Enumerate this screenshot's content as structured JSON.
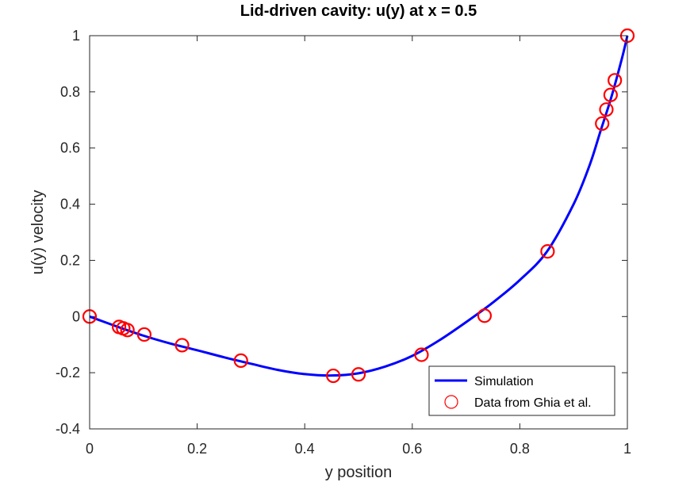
{
  "chart_data": {
    "type": "line",
    "title": "Lid-driven cavity: u(y) at x = 0.5",
    "xlabel": "y position",
    "ylabel": "u(y) velocity",
    "xlim": [
      0,
      1
    ],
    "ylim": [
      -0.4,
      1
    ],
    "x_ticks": [
      "0",
      "0.2",
      "0.4",
      "0.6",
      "0.8",
      "1"
    ],
    "y_ticks": [
      "-0.4",
      "-0.2",
      "0",
      "0.2",
      "0.4",
      "0.6",
      "0.8",
      "1"
    ],
    "grid": false,
    "legend_position": "bottom-right",
    "series": [
      {
        "name": "Simulation",
        "style": "line",
        "color": "#0000ff",
        "x": [
          0,
          0.05,
          0.1,
          0.15,
          0.2,
          0.25,
          0.3,
          0.35,
          0.4,
          0.45,
          0.5,
          0.55,
          0.6,
          0.65,
          0.7,
          0.75,
          0.8,
          0.85,
          0.9,
          0.93,
          0.95,
          0.97,
          0.99,
          1.0
        ],
        "y": [
          0,
          -0.035,
          -0.068,
          -0.096,
          -0.12,
          -0.145,
          -0.168,
          -0.19,
          -0.205,
          -0.21,
          -0.202,
          -0.178,
          -0.14,
          -0.085,
          -0.02,
          0.05,
          0.13,
          0.23,
          0.4,
          0.54,
          0.66,
          0.78,
          0.92,
          1.0
        ]
      },
      {
        "name": "Data from Ghia et al.",
        "style": "markers",
        "color": "#ff0000",
        "marker": "circle",
        "x": [
          0,
          0.0547,
          0.0625,
          0.0703,
          0.1016,
          0.1719,
          0.2813,
          0.4531,
          0.5,
          0.6172,
          0.7344,
          0.8516,
          0.9531,
          0.9609,
          0.9688,
          0.9766,
          1.0
        ],
        "y": [
          0,
          -0.037,
          -0.042,
          -0.048,
          -0.064,
          -0.102,
          -0.157,
          -0.211,
          -0.206,
          -0.136,
          0.003,
          0.232,
          0.687,
          0.737,
          0.789,
          0.841,
          1.0
        ]
      }
    ]
  }
}
